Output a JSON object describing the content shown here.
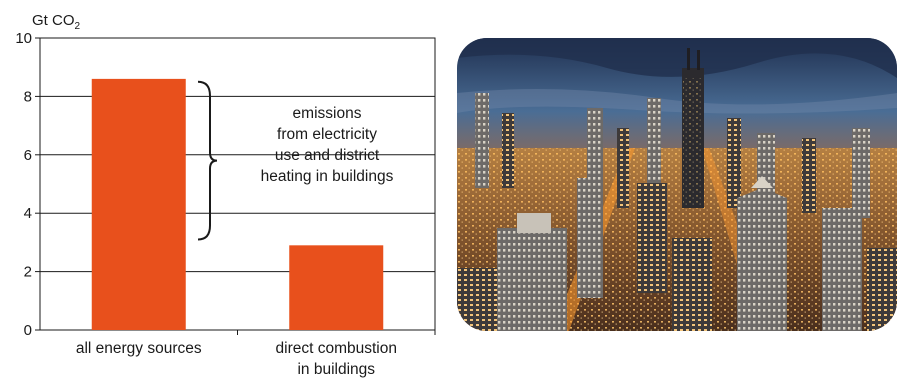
{
  "chart_data": {
    "type": "bar",
    "ylabel_prefix": "Gt CO",
    "ylabel_subscript": "2",
    "ylim": [
      0,
      10
    ],
    "yticks": [
      "0",
      "2",
      "4",
      "6",
      "8",
      "10"
    ],
    "grid": true,
    "categories": [
      [
        "all energy sources"
      ],
      [
        "direct combustion",
        "in buildings"
      ]
    ],
    "values": [
      8.6,
      2.9
    ],
    "bar_color": "#e8501c",
    "annotation": {
      "text_lines": [
        "emissions",
        "from electricity",
        "use and district",
        "heating in buildings"
      ],
      "brace_from": 3.1,
      "brace_to": 8.5
    }
  },
  "photo": {
    "subject": "aerial-night-city-skyline-photo"
  }
}
